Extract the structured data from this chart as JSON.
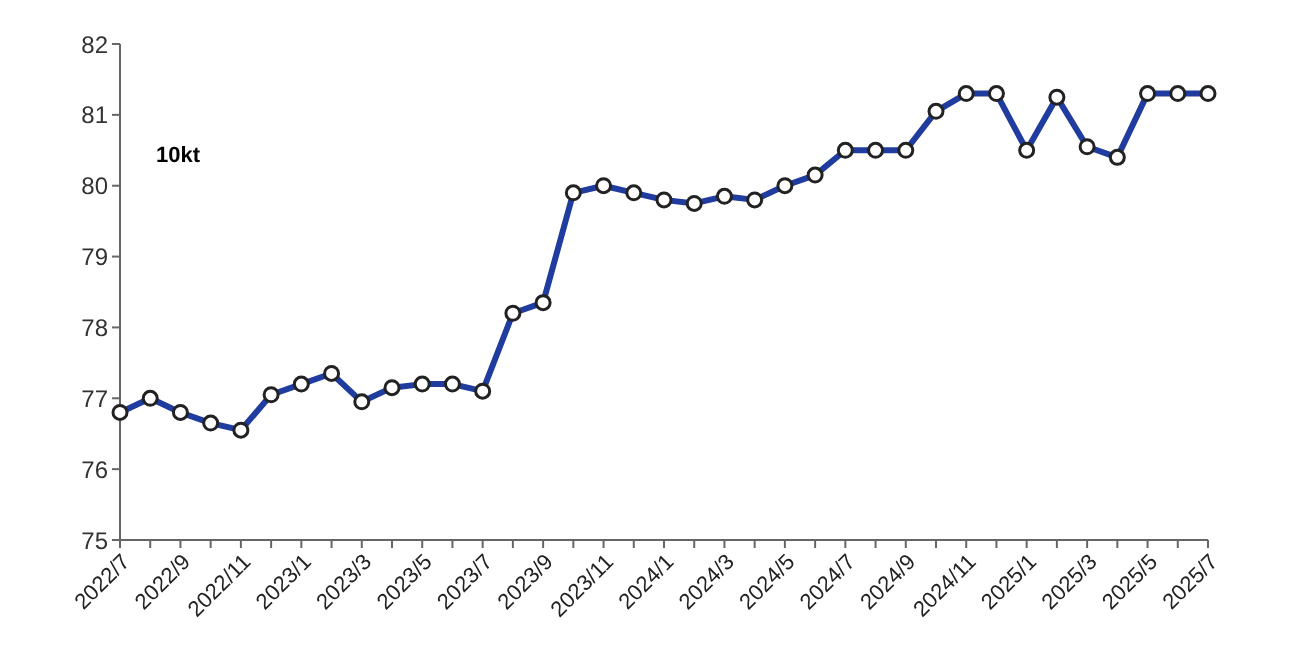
{
  "chart_data": {
    "type": "line",
    "annotations": [
      "10kt"
    ],
    "categories": [
      "2022/7",
      null,
      "2022/9",
      null,
      "2022/11",
      null,
      "2023/1",
      null,
      "2023/3",
      null,
      "2023/5",
      null,
      "2023/7",
      null,
      "2023/9",
      null,
      "2023/11",
      null,
      "2024/1",
      null,
      "2024/3",
      null,
      "2024/5",
      null,
      "2024/7",
      null,
      "2024/9",
      null,
      "2024/11",
      null,
      "2025/1",
      null,
      "2025/3",
      null,
      "2025/5",
      null,
      "2025/7"
    ],
    "series": [
      {
        "color": "#1f3c9e",
        "values": [
          76.8,
          77.0,
          76.8,
          76.65,
          76.55,
          77.05,
          77.2,
          77.35,
          76.95,
          77.15,
          77.2,
          77.2,
          77.1,
          78.2,
          78.35,
          79.9,
          80.0,
          79.9,
          79.8,
          79.75,
          79.85,
          79.8,
          80.0,
          80.15,
          80.5,
          80.5,
          80.5,
          81.05,
          81.3,
          81.3,
          80.5,
          81.25,
          80.55,
          80.4,
          81.3,
          81.3,
          81.3
        ]
      }
    ],
    "ylim": [
      75,
      82
    ],
    "yticks": [
      75,
      76,
      77,
      78,
      79,
      80,
      81,
      82
    ],
    "grid": false,
    "legend": false,
    "marker": "circle",
    "line_style": "solid"
  }
}
